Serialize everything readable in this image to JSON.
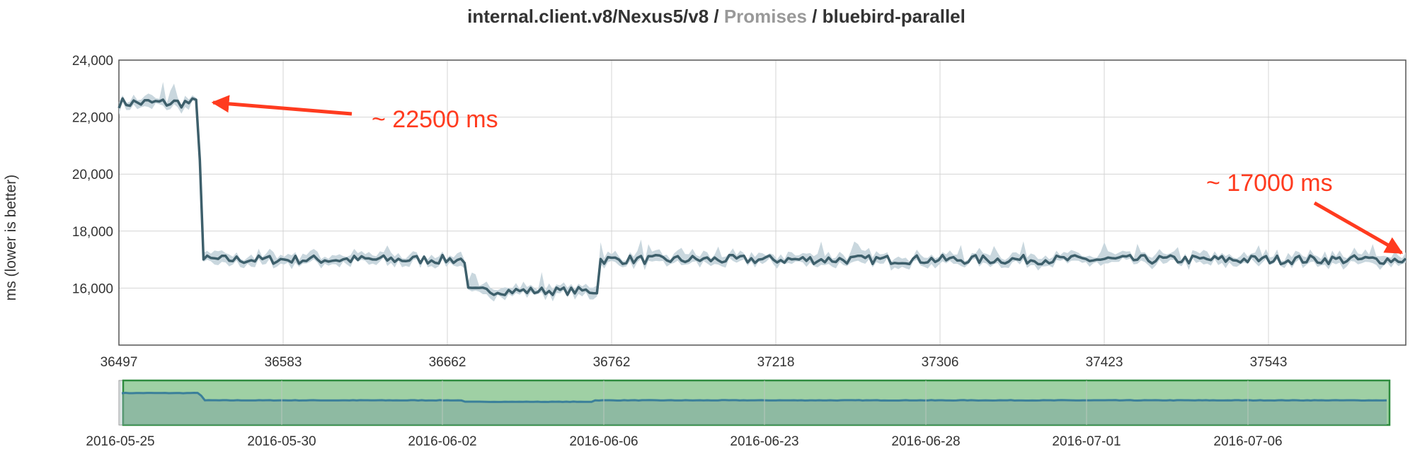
{
  "title": {
    "prefix": "internal.client.v8/Nexus5/v8 / ",
    "middle": "Promises",
    "suffix": " / bluebird-parallel"
  },
  "colors": {
    "line": "#3d5f6b",
    "band": "#c9d7de",
    "annotation": "#ff3b1f",
    "brush_fill": "#9fd0a4",
    "brush_border": "#2e8b3e",
    "grid": "#d4d4d4"
  },
  "chart_data": [
    {
      "type": "line",
      "ylabel": "ms (lower is better)",
      "ylim": [
        14000,
        24000
      ],
      "yticks": [
        {
          "value": 16000,
          "label": "16,000"
        },
        {
          "value": 18000,
          "label": "18,000"
        },
        {
          "value": 20000,
          "label": "20,000"
        },
        {
          "value": 22000,
          "label": "22,000"
        },
        {
          "value": 24000,
          "label": "24,000"
        }
      ],
      "xticks": [
        "36497",
        "36583",
        "36662",
        "36762",
        "37218",
        "37306",
        "37423",
        "37543"
      ],
      "grid": true,
      "series": [
        {
          "segments": [
            {
              "points": 22,
              "level": 22500,
              "noise": 180
            },
            {
              "points": 1,
              "level": 20500,
              "noise": 0
            },
            {
              "points": 72,
              "level": 17000,
              "noise": 160
            },
            {
              "points": 36,
              "level": 15900,
              "noise": 140
            },
            {
              "points": 220,
              "level": 17000,
              "noise": 160
            }
          ]
        }
      ],
      "annotations": [
        {
          "text": "~ 22500 ms",
          "target_index": 21
        },
        {
          "text": "~ 17000 ms",
          "target_index": 350
        }
      ]
    },
    {
      "type": "area",
      "role": "overview",
      "xticks": [
        "2016-05-25",
        "2016-05-30",
        "2016-06-02",
        "2016-06-06",
        "2016-06-23",
        "2016-06-28",
        "2016-07-01",
        "2016-07-06"
      ]
    }
  ]
}
